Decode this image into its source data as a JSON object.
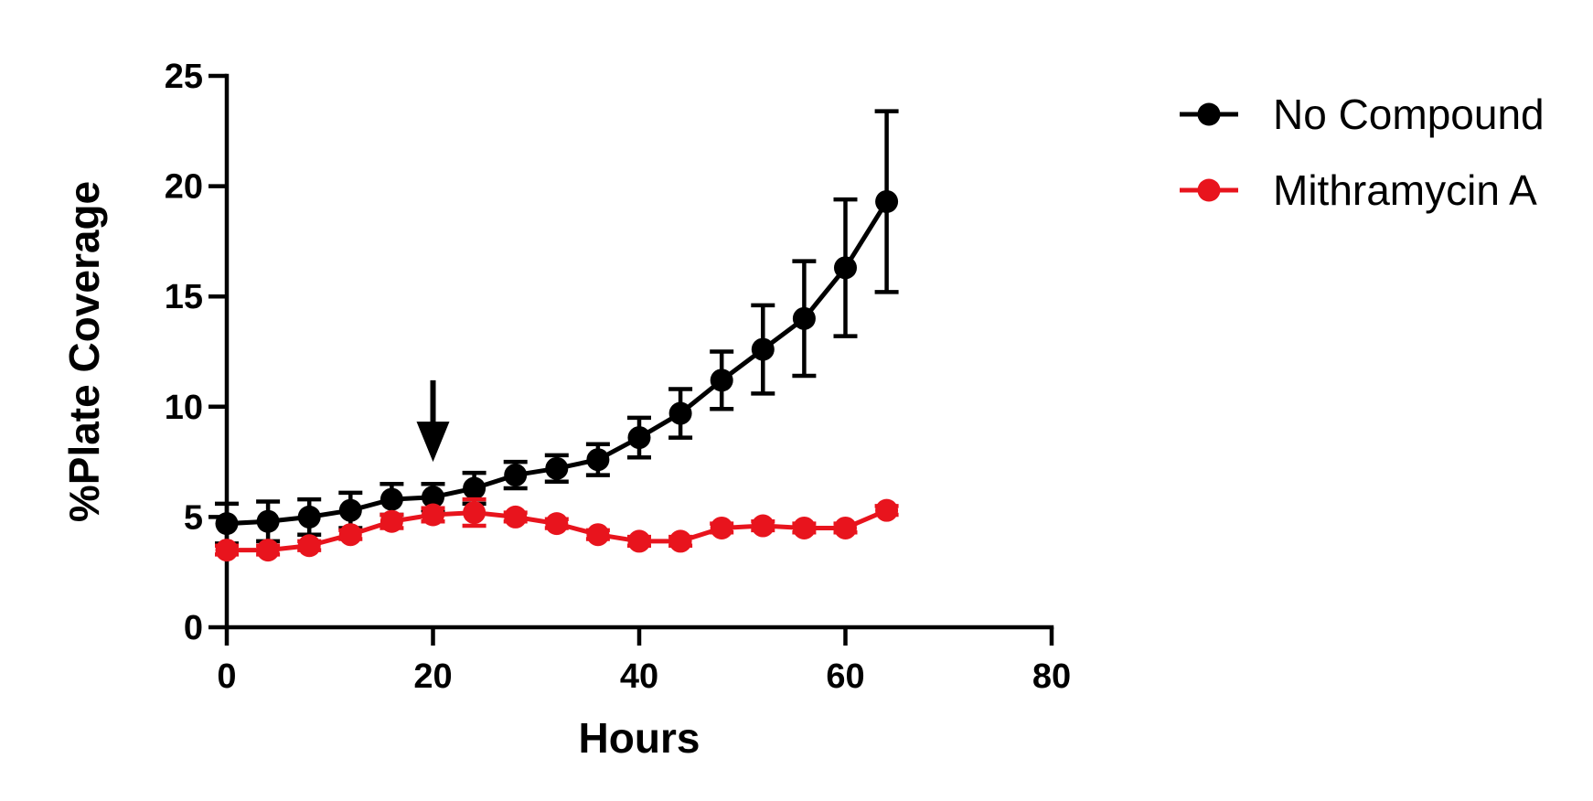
{
  "chart_data": {
    "type": "line",
    "title": "",
    "xlabel": "Hours",
    "ylabel": "%Plate Coverage",
    "xlim": [
      0,
      80
    ],
    "ylim": [
      0,
      25
    ],
    "x_ticks": [
      0,
      20,
      40,
      60,
      80
    ],
    "y_ticks": [
      0,
      5,
      10,
      15,
      20,
      25
    ],
    "x_tick_labels": [
      "0",
      "20",
      "40",
      "60",
      "80"
    ],
    "y_tick_labels": [
      "0",
      "5",
      "10",
      "15",
      "20",
      "25"
    ],
    "grid": false,
    "legend_position": "top-right",
    "annotations": [
      {
        "type": "arrow-down",
        "x": 20,
        "y_top": 11.2,
        "y_tip": 7.5
      }
    ],
    "x": [
      0,
      4,
      8,
      12,
      16,
      20,
      24,
      28,
      32,
      36,
      40,
      44,
      48,
      52,
      56,
      60,
      64
    ],
    "series": [
      {
        "name": "No Compound",
        "color": "#000000",
        "values": [
          4.7,
          4.8,
          5.0,
          5.3,
          5.8,
          5.9,
          6.3,
          6.9,
          7.2,
          7.6,
          8.6,
          9.7,
          11.2,
          12.6,
          14.0,
          16.3,
          19.3
        ],
        "errors": [
          0.9,
          0.9,
          0.8,
          0.8,
          0.7,
          0.6,
          0.7,
          0.6,
          0.6,
          0.7,
          0.9,
          1.1,
          1.3,
          2.0,
          2.6,
          3.1,
          4.1
        ]
      },
      {
        "name": "Mithramycin A",
        "color": "#e8141d",
        "values": [
          3.5,
          3.5,
          3.7,
          4.2,
          4.8,
          5.1,
          5.2,
          5.0,
          4.7,
          4.2,
          3.9,
          3.9,
          4.5,
          4.6,
          4.5,
          4.5,
          5.3
        ],
        "errors": [
          0.2,
          0.2,
          0.2,
          0.2,
          0.3,
          0.3,
          0.6,
          0.2,
          0.2,
          0.2,
          0.2,
          0.2,
          0.2,
          0.2,
          0.2,
          0.2,
          0.2
        ]
      }
    ]
  }
}
